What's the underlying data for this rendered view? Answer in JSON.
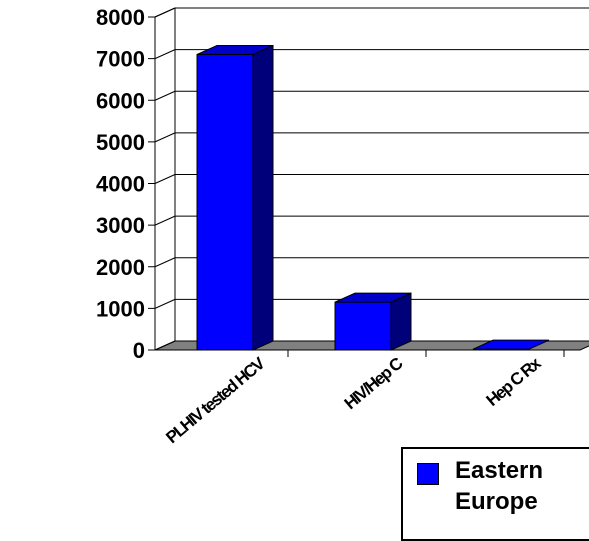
{
  "chart_data": {
    "type": "bar",
    "categories": [
      "PLHIV tested HCV",
      "HIV/Hep C",
      "Hep C Rx"
    ],
    "series": [
      {
        "name": "Eastern Europe",
        "values": [
          7100,
          1150,
          20
        ]
      }
    ],
    "ylim": [
      0,
      8000
    ],
    "yticks": [
      0,
      1000,
      2000,
      3000,
      4000,
      5000,
      6000,
      7000,
      8000
    ],
    "grid": true,
    "legend": "bottom-right",
    "colors": {
      "front": "#0000ff",
      "side": "#00007a",
      "top": "#0000c8",
      "floor": "#808080"
    }
  }
}
